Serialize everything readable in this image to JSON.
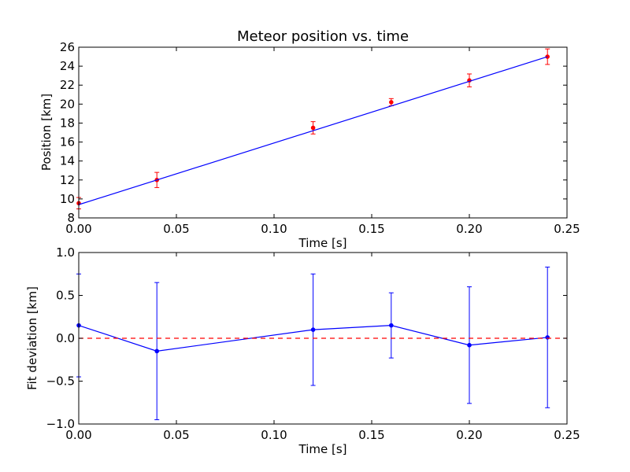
{
  "chart_data": [
    {
      "type": "scatter",
      "title": "Meteor position vs. time",
      "xlabel": "Time [s]",
      "ylabel": "Position [km]",
      "xlim": [
        0.0,
        0.25
      ],
      "ylim": [
        8,
        26
      ],
      "x_ticks": [
        0.0,
        0.05,
        0.1,
        0.15,
        0.2,
        0.25
      ],
      "x_tick_labels": [
        "0.00",
        "0.05",
        "0.10",
        "0.15",
        "0.20",
        "0.25"
      ],
      "y_ticks": [
        8,
        10,
        12,
        14,
        16,
        18,
        20,
        22,
        24,
        26
      ],
      "y_tick_labels": [
        "8",
        "10",
        "12",
        "14",
        "16",
        "18",
        "20",
        "22",
        "24",
        "26"
      ],
      "grid": false,
      "series": [
        {
          "kind": "errorbar",
          "color": "#ff0000",
          "x": [
            0.0,
            0.04,
            0.12,
            0.16,
            0.2,
            0.24
          ],
          "y": [
            9.55,
            12.0,
            17.5,
            20.2,
            22.5,
            25.0
          ],
          "yerr": [
            0.6,
            0.8,
            0.65,
            0.38,
            0.68,
            0.82
          ]
        },
        {
          "kind": "line",
          "color": "#0000ff",
          "x": [
            0.0,
            0.24
          ],
          "y": [
            9.4,
            25.0
          ]
        }
      ]
    },
    {
      "type": "line",
      "title": "",
      "xlabel": "Time [s]",
      "ylabel": "Fit deviation [km]",
      "xlim": [
        0.0,
        0.25
      ],
      "ylim": [
        -1.0,
        1.0
      ],
      "x_ticks": [
        0.0,
        0.05,
        0.1,
        0.15,
        0.2,
        0.25
      ],
      "x_tick_labels": [
        "0.00",
        "0.05",
        "0.10",
        "0.15",
        "0.20",
        "0.25"
      ],
      "y_ticks": [
        -1.0,
        -0.5,
        0.0,
        0.5,
        1.0
      ],
      "y_tick_labels": [
        "−1.0",
        "−0.5",
        "0.0",
        "0.5",
        "1.0"
      ],
      "grid": false,
      "series": [
        {
          "kind": "errorbar-line",
          "color": "#0000ff",
          "x": [
            0.0,
            0.04,
            0.12,
            0.16,
            0.2,
            0.24
          ],
          "y": [
            0.15,
            -0.15,
            0.1,
            0.15,
            -0.08,
            0.01
          ],
          "yerr": [
            0.6,
            0.8,
            0.65,
            0.38,
            0.68,
            0.82
          ]
        },
        {
          "kind": "reference-line",
          "color": "#ff0000",
          "style": "dashed",
          "y": 0.0
        }
      ]
    }
  ]
}
